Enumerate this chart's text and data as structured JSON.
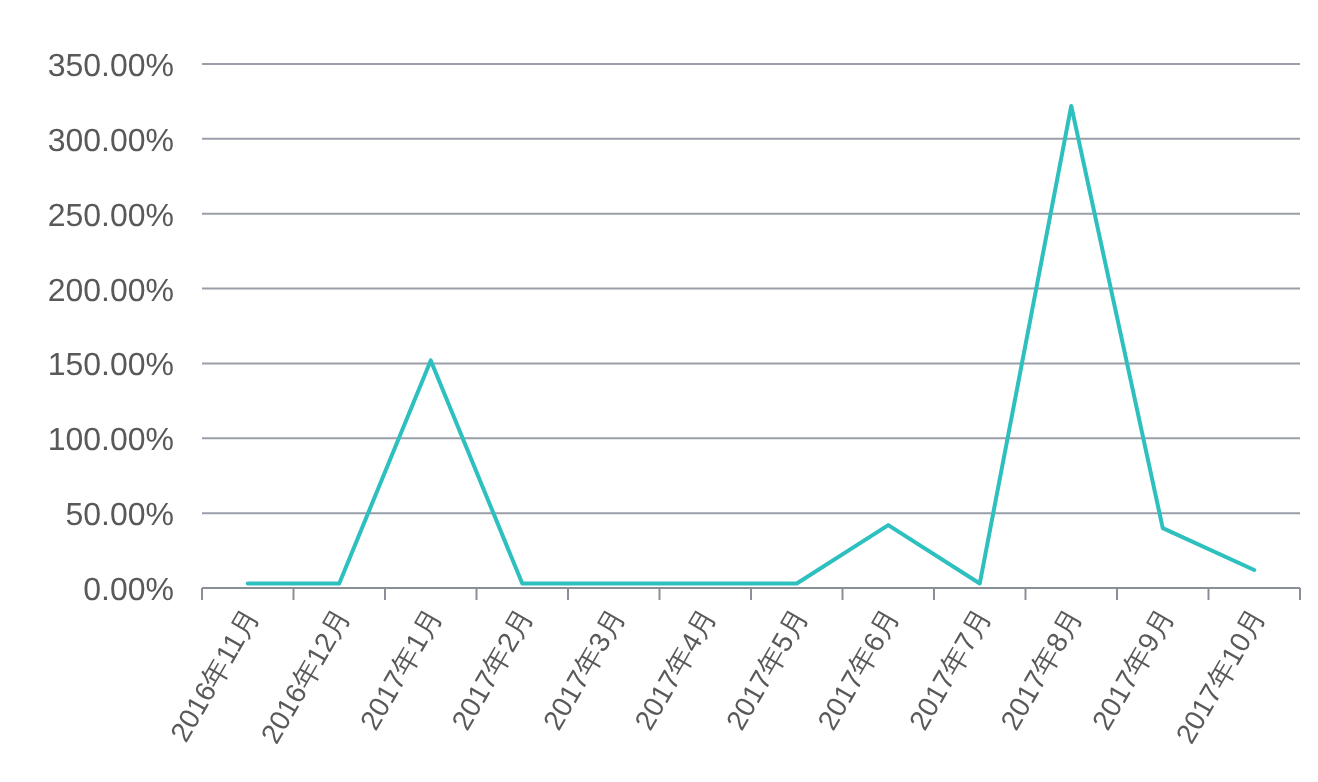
{
  "chart_data": {
    "type": "line",
    "categories": [
      "2016年11月",
      "2016年12月",
      "2017年1月",
      "2017年2月",
      "2017年3月",
      "2017年4月",
      "2017年5月",
      "2017年6月",
      "2017年7月",
      "2017年8月",
      "2017年9月",
      "2017年10月"
    ],
    "series": [
      {
        "color": "#2ebfbf",
        "values": [
          3,
          3,
          152,
          3,
          3,
          3,
          3,
          42,
          3,
          322,
          40,
          12
        ]
      }
    ],
    "ylim": [
      0,
      350
    ],
    "yticks": [
      {
        "value": 0,
        "label": "0.00%"
      },
      {
        "value": 50,
        "label": "50.00%"
      },
      {
        "value": 100,
        "label": "100.00%"
      },
      {
        "value": 150,
        "label": "150.00%"
      },
      {
        "value": 200,
        "label": "200.00%"
      },
      {
        "value": 250,
        "label": "250.00%"
      },
      {
        "value": 300,
        "label": "300.00%"
      },
      {
        "value": 350,
        "label": "350.00%"
      }
    ],
    "grid": "y",
    "marker": "none",
    "line_style": "solid"
  }
}
